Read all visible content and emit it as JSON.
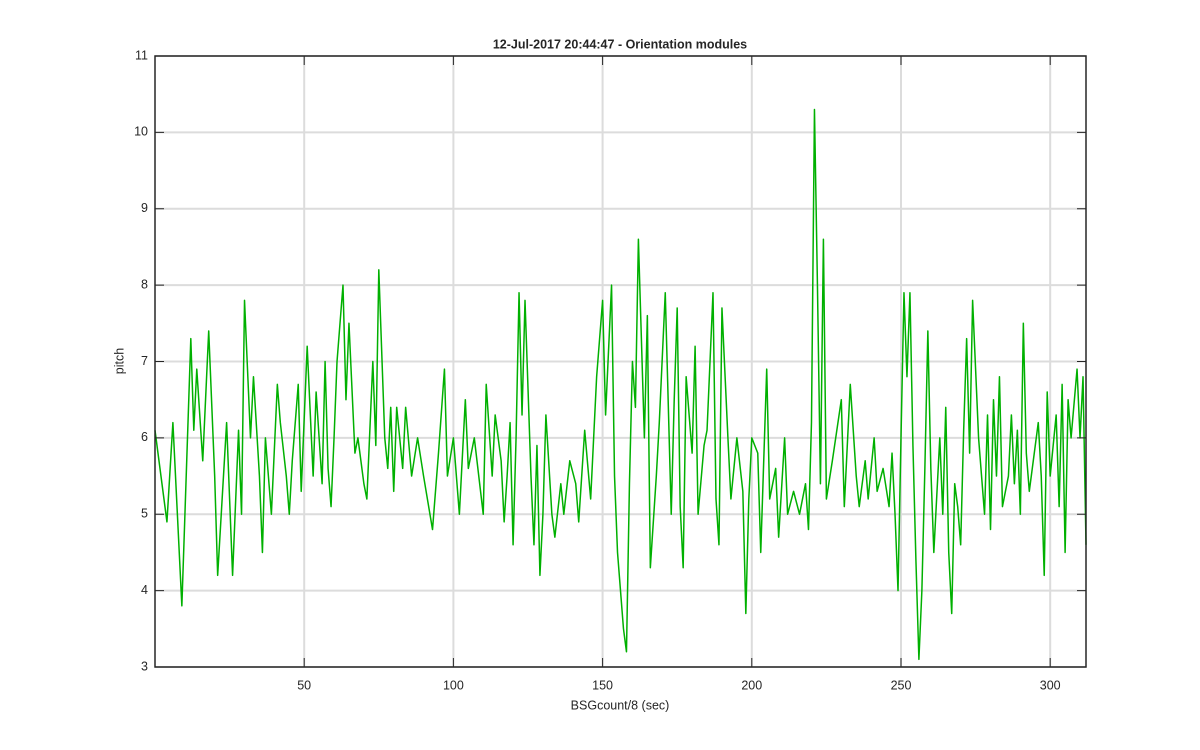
{
  "chart_data": {
    "type": "line",
    "title": "12-Jul-2017 20:44:47 - Orientation modules",
    "xlabel": "BSGcount/8 (sec)",
    "ylabel": "pitch",
    "xlim": [
      0,
      312
    ],
    "ylim": [
      3,
      11
    ],
    "xticks": [
      50,
      100,
      150,
      200,
      250,
      300
    ],
    "yticks": [
      3,
      4,
      5,
      6,
      7,
      8,
      9,
      10,
      11
    ],
    "grid": true,
    "x": [
      0,
      1,
      4,
      6,
      9,
      12,
      13,
      14,
      16,
      18,
      20,
      21,
      24,
      26,
      28,
      29,
      30,
      32,
      33,
      35,
      36,
      37,
      39,
      41,
      42,
      44,
      45,
      46,
      48,
      49,
      51,
      53,
      54,
      56,
      57,
      58,
      59,
      60,
      61,
      63,
      64,
      65,
      67,
      68,
      70,
      71,
      73,
      74,
      75,
      77,
      78,
      79,
      80,
      81,
      83,
      84,
      86,
      88,
      90,
      93,
      95,
      97,
      98,
      100,
      102,
      104,
      105,
      107,
      110,
      111,
      113,
      114,
      116,
      117,
      118,
      119,
      120,
      121,
      122,
      123,
      124,
      126,
      127,
      128,
      129,
      130,
      131,
      133,
      134,
      136,
      137,
      139,
      141,
      142,
      144,
      146,
      148,
      150,
      151,
      153,
      154,
      155,
      157,
      158,
      159,
      160,
      161,
      162,
      164,
      165,
      166,
      168,
      169,
      171,
      173,
      174,
      175,
      176,
      177,
      178,
      180,
      181,
      182,
      184,
      185,
      187,
      188,
      189,
      190,
      192,
      193,
      195,
      197,
      198,
      199,
      200,
      202,
      203,
      205,
      206,
      208,
      209,
      211,
      212,
      214,
      216,
      218,
      219,
      220,
      221,
      222,
      223,
      224,
      225,
      227,
      230,
      231,
      233,
      235,
      236,
      238,
      239,
      241,
      242,
      244,
      246,
      247,
      248,
      249,
      250,
      251,
      252,
      253,
      254,
      255,
      256,
      257,
      258,
      259,
      260,
      261,
      263,
      264,
      265,
      266,
      267,
      268,
      269,
      270,
      271,
      272,
      273,
      274,
      276,
      278,
      279,
      280,
      281,
      282,
      283,
      284,
      286,
      287,
      288,
      289,
      290,
      291,
      292,
      293,
      295,
      296,
      297,
      298,
      299,
      300,
      302,
      303,
      304,
      305,
      306,
      307,
      309,
      310,
      311,
      312
    ],
    "series": [
      {
        "color": "#00b000",
        "values": [
          6.1,
          5.8,
          4.9,
          6.2,
          3.8,
          7.3,
          6.1,
          6.9,
          5.7,
          7.4,
          5.5,
          4.2,
          6.2,
          4.2,
          6.1,
          5.0,
          7.8,
          6.0,
          6.8,
          5.5,
          4.5,
          6.0,
          5.0,
          6.7,
          6.2,
          5.5,
          5.0,
          5.7,
          6.7,
          5.3,
          7.2,
          5.5,
          6.6,
          5.4,
          7.0,
          5.6,
          5.1,
          6.0,
          7.0,
          8.0,
          6.5,
          7.5,
          5.8,
          6.0,
          5.4,
          5.2,
          7.0,
          5.9,
          8.2,
          6.0,
          5.6,
          6.4,
          5.3,
          6.4,
          5.6,
          6.4,
          5.5,
          6.0,
          5.5,
          4.8,
          5.8,
          6.9,
          5.5,
          6.0,
          5.0,
          6.5,
          5.6,
          6.0,
          5.0,
          6.7,
          5.5,
          6.3,
          5.7,
          4.9,
          5.5,
          6.2,
          4.6,
          6.0,
          7.9,
          6.3,
          7.8,
          5.5,
          4.6,
          5.9,
          4.2,
          5.0,
          6.3,
          5.0,
          4.7,
          5.4,
          5.0,
          5.7,
          5.4,
          4.9,
          6.1,
          5.2,
          6.8,
          7.8,
          6.3,
          8.0,
          5.5,
          4.5,
          3.5,
          3.2,
          5.4,
          7.0,
          6.4,
          8.6,
          6.0,
          7.6,
          4.3,
          5.5,
          6.2,
          7.9,
          5.0,
          6.5,
          7.7,
          5.1,
          4.3,
          6.8,
          5.8,
          7.2,
          5.0,
          5.9,
          6.1,
          7.9,
          5.2,
          4.6,
          7.7,
          6.0,
          5.2,
          6.0,
          5.3,
          3.7,
          5.2,
          6.0,
          5.8,
          4.5,
          6.9,
          5.2,
          5.6,
          4.7,
          6.0,
          5.0,
          5.3,
          5.0,
          5.4,
          4.8,
          6.2,
          10.3,
          8.0,
          5.4,
          8.6,
          5.2,
          5.7,
          6.5,
          5.1,
          6.7,
          5.5,
          5.1,
          5.7,
          5.2,
          6.0,
          5.3,
          5.6,
          5.1,
          5.8,
          5.0,
          4.0,
          6.0,
          7.9,
          6.8,
          7.9,
          5.9,
          4.4,
          3.1,
          4.0,
          5.6,
          7.4,
          5.6,
          4.5,
          6.0,
          5.0,
          6.4,
          4.5,
          3.7,
          5.4,
          5.1,
          4.6,
          6.1,
          7.3,
          5.8,
          7.8,
          6.0,
          5.0,
          6.3,
          4.8,
          6.5,
          5.5,
          6.8,
          5.1,
          5.5,
          6.3,
          5.4,
          6.1,
          5.0,
          7.5,
          5.8,
          5.3,
          5.9,
          6.2,
          5.5,
          4.2,
          6.6,
          5.5,
          6.3,
          5.1,
          6.7,
          4.5,
          6.5,
          6.0,
          6.9,
          6.0,
          6.8,
          4.6
        ]
      }
    ]
  }
}
